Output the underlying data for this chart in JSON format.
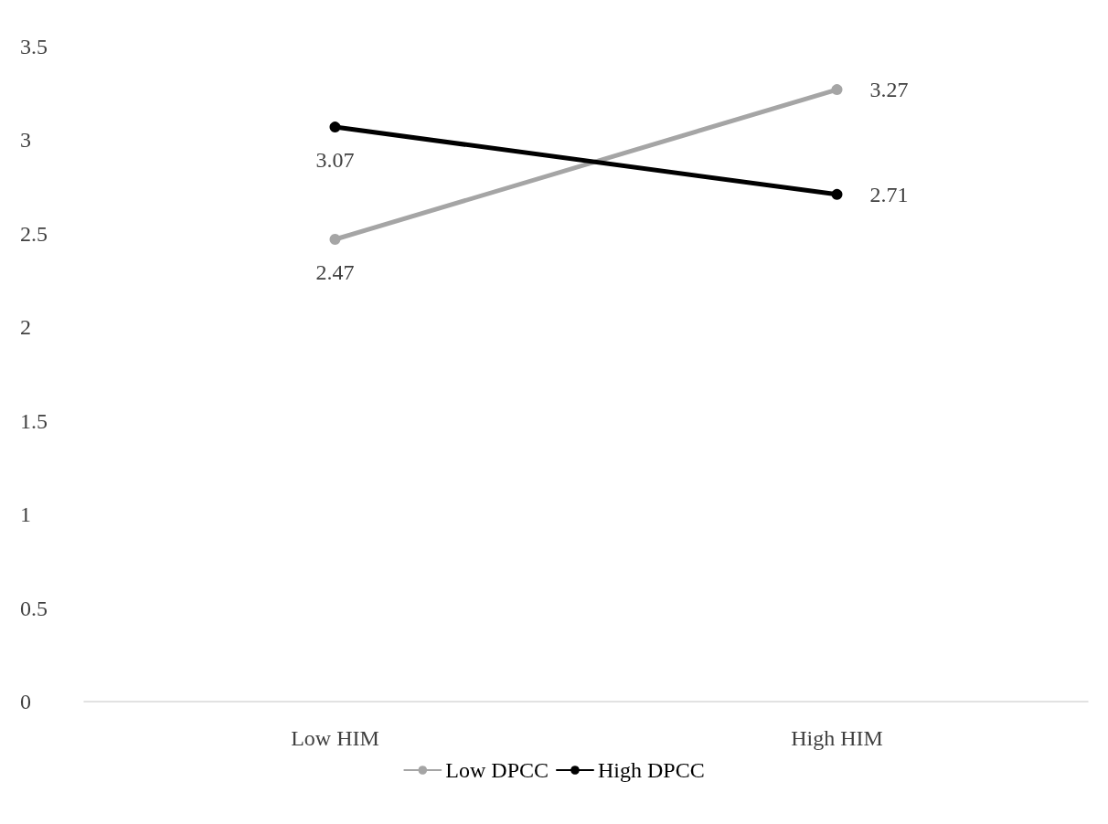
{
  "chart_data": {
    "type": "line",
    "categories": [
      "Low HIM",
      "High HIM"
    ],
    "series": [
      {
        "name": "Low DPCC",
        "color": "#a5a5a5",
        "values": [
          2.47,
          3.27
        ]
      },
      {
        "name": "High DPCC",
        "color": "#000000",
        "values": [
          3.07,
          2.71
        ]
      }
    ],
    "ylim": [
      0,
      3.5
    ],
    "yticks": [
      0,
      0.5,
      1,
      1.5,
      2,
      2.5,
      3,
      3.5
    ],
    "grid": false,
    "legend": "bottom",
    "data_labels": true,
    "marker": "circle",
    "line_style": "solid"
  }
}
